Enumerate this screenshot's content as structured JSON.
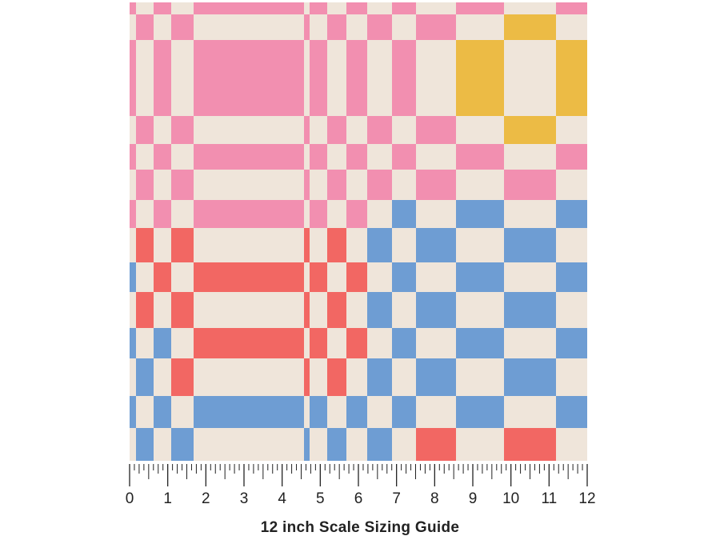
{
  "product_image": {
    "colors": {
      "cream": "#efe5da",
      "pink": "#f28fb0",
      "red": "#f26763",
      "blue": "#6e9dd3",
      "yellow": "#ecbb45"
    }
  },
  "ruler": {
    "labels": [
      "0",
      "1",
      "2",
      "3",
      "4",
      "5",
      "6",
      "7",
      "8",
      "9",
      "10",
      "11",
      "12"
    ]
  },
  "caption": "12 inch Scale Sizing Guide"
}
